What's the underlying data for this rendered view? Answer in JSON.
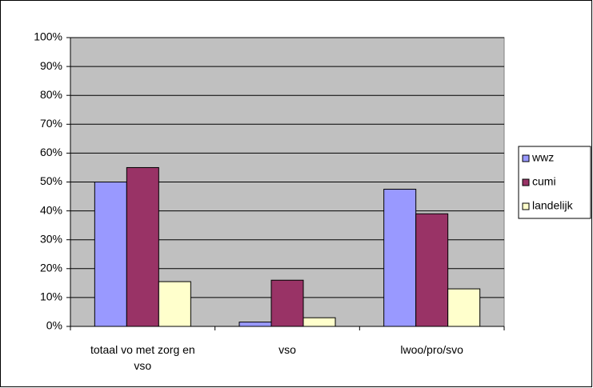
{
  "chart_data": {
    "type": "bar",
    "categories": [
      "totaal vo met zorg en vso",
      "vso",
      "lwoo/pro/svo"
    ],
    "series": [
      {
        "name": "wwz",
        "color": "#9999ff",
        "values": [
          50,
          1.5,
          47.5
        ]
      },
      {
        "name": "cumi",
        "color": "#993366",
        "values": [
          55,
          16,
          39
        ]
      },
      {
        "name": "landelijk",
        "color": "#ffffcc",
        "values": [
          15.5,
          3,
          13
        ]
      }
    ],
    "ylim": [
      0,
      100
    ],
    "yticks": [
      {
        "value": 0,
        "label": "0%"
      },
      {
        "value": 10,
        "label": "10%"
      },
      {
        "value": 20,
        "label": "20%"
      },
      {
        "value": 30,
        "label": "30%"
      },
      {
        "value": 40,
        "label": "40%"
      },
      {
        "value": 50,
        "label": "50%"
      },
      {
        "value": 60,
        "label": "60%"
      },
      {
        "value": 70,
        "label": "70%"
      },
      {
        "value": 80,
        "label": "80%"
      },
      {
        "value": 90,
        "label": "90%"
      },
      {
        "value": 100,
        "label": "100%"
      }
    ],
    "grid": true,
    "legend": "right",
    "plot_background": "#c0c0c0"
  }
}
